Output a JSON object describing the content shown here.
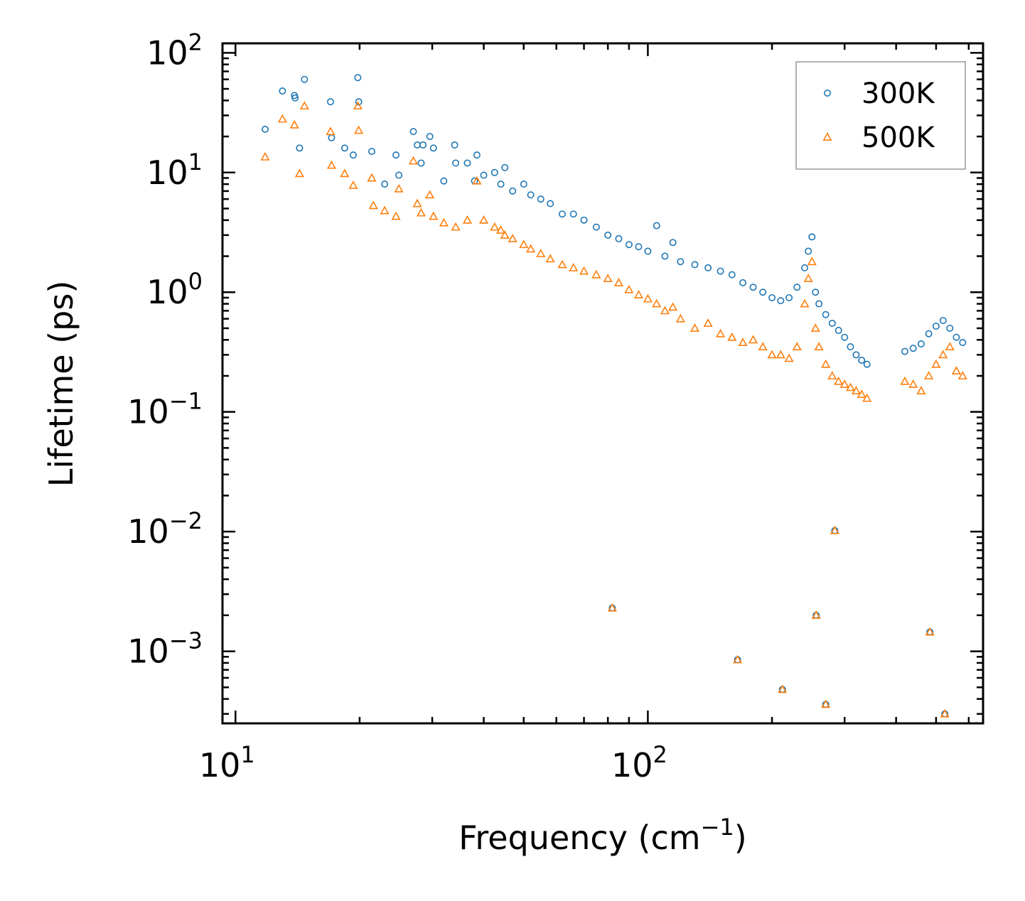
{
  "chart_data": {
    "type": "scatter",
    "xscale": "log",
    "yscale": "log",
    "xlim": [
      9.3,
      650
    ],
    "ylim": [
      0.00025,
      120
    ],
    "xlabel": {
      "base": "Frequency (cm",
      "sup": "−1",
      "suffix": ")"
    },
    "ylabel": "Lifetime (ps)",
    "x_ticks": [
      {
        "value": 10,
        "base": "10",
        "exp": "1"
      },
      {
        "value": 100,
        "base": "10",
        "exp": "2"
      }
    ],
    "y_ticks": [
      {
        "value": 0.001,
        "base": "10",
        "exp": "−3"
      },
      {
        "value": 0.01,
        "base": "10",
        "exp": "−2"
      },
      {
        "value": 0.1,
        "base": "10",
        "exp": "−1"
      },
      {
        "value": 1,
        "base": "10",
        "exp": "0"
      },
      {
        "value": 10,
        "base": "10",
        "exp": "1"
      },
      {
        "value": 100,
        "base": "10",
        "exp": "2"
      }
    ],
    "legend": {
      "position": "top-right",
      "entries": [
        "300K",
        "500K"
      ]
    },
    "series": [
      {
        "name": "300K",
        "marker": "circle-open",
        "color": "#1f77b4",
        "x": [
          11.8,
          13.0,
          13.9,
          13.95,
          14.3,
          14.7,
          17.0,
          17.1,
          18.4,
          19.3,
          19.8,
          19.9,
          21.4,
          23.0,
          24.5,
          24.9,
          27.0,
          27.6,
          28.2,
          28.5,
          29.6,
          30.2,
          32.0,
          34.0,
          34.2,
          36.5,
          38.0,
          38.5,
          40.0,
          42.5,
          44.0,
          45.0,
          47.0,
          50.0,
          52.0,
          55.0,
          58.0,
          62.0,
          66.0,
          70.0,
          75.0,
          80.0,
          85.0,
          90.0,
          95.0,
          100.0,
          105.0,
          110.0,
          115.0,
          120.0,
          130.0,
          140.0,
          150.0,
          160.0,
          170.0,
          180.0,
          190.0,
          200.0,
          210.0,
          220.0,
          230.0,
          240.0,
          245.0,
          250.0,
          255.0,
          260.0,
          270.0,
          280.0,
          290.0,
          300.0,
          310.0,
          320.0,
          330.0,
          340.0,
          420.0,
          440.0,
          460.0,
          480.0,
          500.0,
          520.0,
          540.0,
          560.0,
          580.0,
          82.0,
          165.0,
          212.0,
          256.0,
          270.0,
          284.0,
          483.0,
          525.0
        ],
        "y": [
          23.0,
          48.0,
          44.0,
          42.0,
          16.0,
          60.0,
          39.0,
          19.5,
          16.0,
          14.0,
          62.0,
          39.0,
          15.0,
          8.0,
          14.0,
          9.5,
          22.0,
          17.0,
          12.0,
          17.0,
          20.0,
          16.0,
          8.5,
          17.0,
          12.0,
          12.0,
          8.5,
          14.0,
          9.5,
          10.0,
          8.0,
          11.0,
          7.0,
          8.0,
          6.5,
          6.0,
          5.5,
          4.5,
          4.5,
          4.0,
          3.5,
          3.0,
          2.8,
          2.5,
          2.4,
          2.2,
          3.6,
          2.0,
          2.6,
          1.8,
          1.7,
          1.6,
          1.5,
          1.4,
          1.2,
          1.1,
          1.0,
          0.9,
          0.85,
          0.9,
          1.1,
          1.6,
          2.2,
          2.9,
          1.0,
          0.8,
          0.65,
          0.55,
          0.48,
          0.42,
          0.35,
          0.3,
          0.27,
          0.25,
          0.32,
          0.34,
          0.37,
          0.45,
          0.52,
          0.58,
          0.5,
          0.42,
          0.38,
          0.0023,
          0.00085,
          0.00048,
          0.002,
          0.00036,
          0.0102,
          0.00145,
          0.0003
        ]
      },
      {
        "name": "500K",
        "marker": "triangle-open",
        "color": "#ff7f0e",
        "x": [
          11.8,
          13.0,
          13.9,
          14.3,
          14.7,
          17.0,
          17.1,
          18.4,
          19.3,
          19.8,
          19.9,
          21.4,
          21.6,
          23.0,
          24.5,
          24.9,
          27.0,
          27.6,
          28.2,
          29.6,
          30.2,
          32.0,
          34.2,
          36.5,
          38.5,
          40.0,
          42.5,
          44.0,
          45.0,
          47.0,
          50.0,
          52.0,
          55.0,
          58.0,
          62.0,
          66.0,
          70.0,
          75.0,
          80.0,
          85.0,
          90.0,
          95.0,
          100.0,
          105.0,
          110.0,
          115.0,
          120.0,
          130.0,
          140.0,
          150.0,
          160.0,
          170.0,
          180.0,
          190.0,
          200.0,
          210.0,
          220.0,
          230.0,
          240.0,
          245.0,
          250.0,
          255.0,
          260.0,
          270.0,
          280.0,
          290.0,
          300.0,
          310.0,
          320.0,
          330.0,
          340.0,
          420.0,
          440.0,
          460.0,
          480.0,
          500.0,
          520.0,
          540.0,
          560.0,
          580.0,
          82.0,
          165.0,
          212.0,
          256.0,
          270.0,
          284.0,
          483.0,
          525.0
        ],
        "y": [
          13.5,
          28.0,
          25.0,
          9.8,
          36.0,
          22.0,
          11.5,
          9.8,
          7.8,
          36.0,
          22.5,
          9.0,
          5.3,
          4.8,
          4.3,
          7.3,
          12.5,
          5.5,
          4.6,
          6.5,
          4.3,
          3.8,
          3.5,
          4.0,
          8.5,
          4.0,
          3.5,
          3.3,
          3.0,
          2.8,
          2.5,
          2.3,
          2.1,
          1.9,
          1.7,
          1.6,
          1.5,
          1.4,
          1.3,
          1.2,
          1.05,
          0.95,
          0.88,
          0.8,
          0.7,
          0.75,
          0.6,
          0.5,
          0.55,
          0.45,
          0.42,
          0.38,
          0.4,
          0.35,
          0.3,
          0.3,
          0.28,
          0.35,
          0.8,
          1.3,
          1.8,
          0.5,
          0.35,
          0.25,
          0.2,
          0.18,
          0.17,
          0.16,
          0.15,
          0.14,
          0.13,
          0.18,
          0.17,
          0.15,
          0.2,
          0.25,
          0.3,
          0.35,
          0.22,
          0.2,
          0.0023,
          0.00085,
          0.00048,
          0.002,
          0.00036,
          0.0102,
          0.00145,
          0.0003
        ]
      }
    ]
  }
}
